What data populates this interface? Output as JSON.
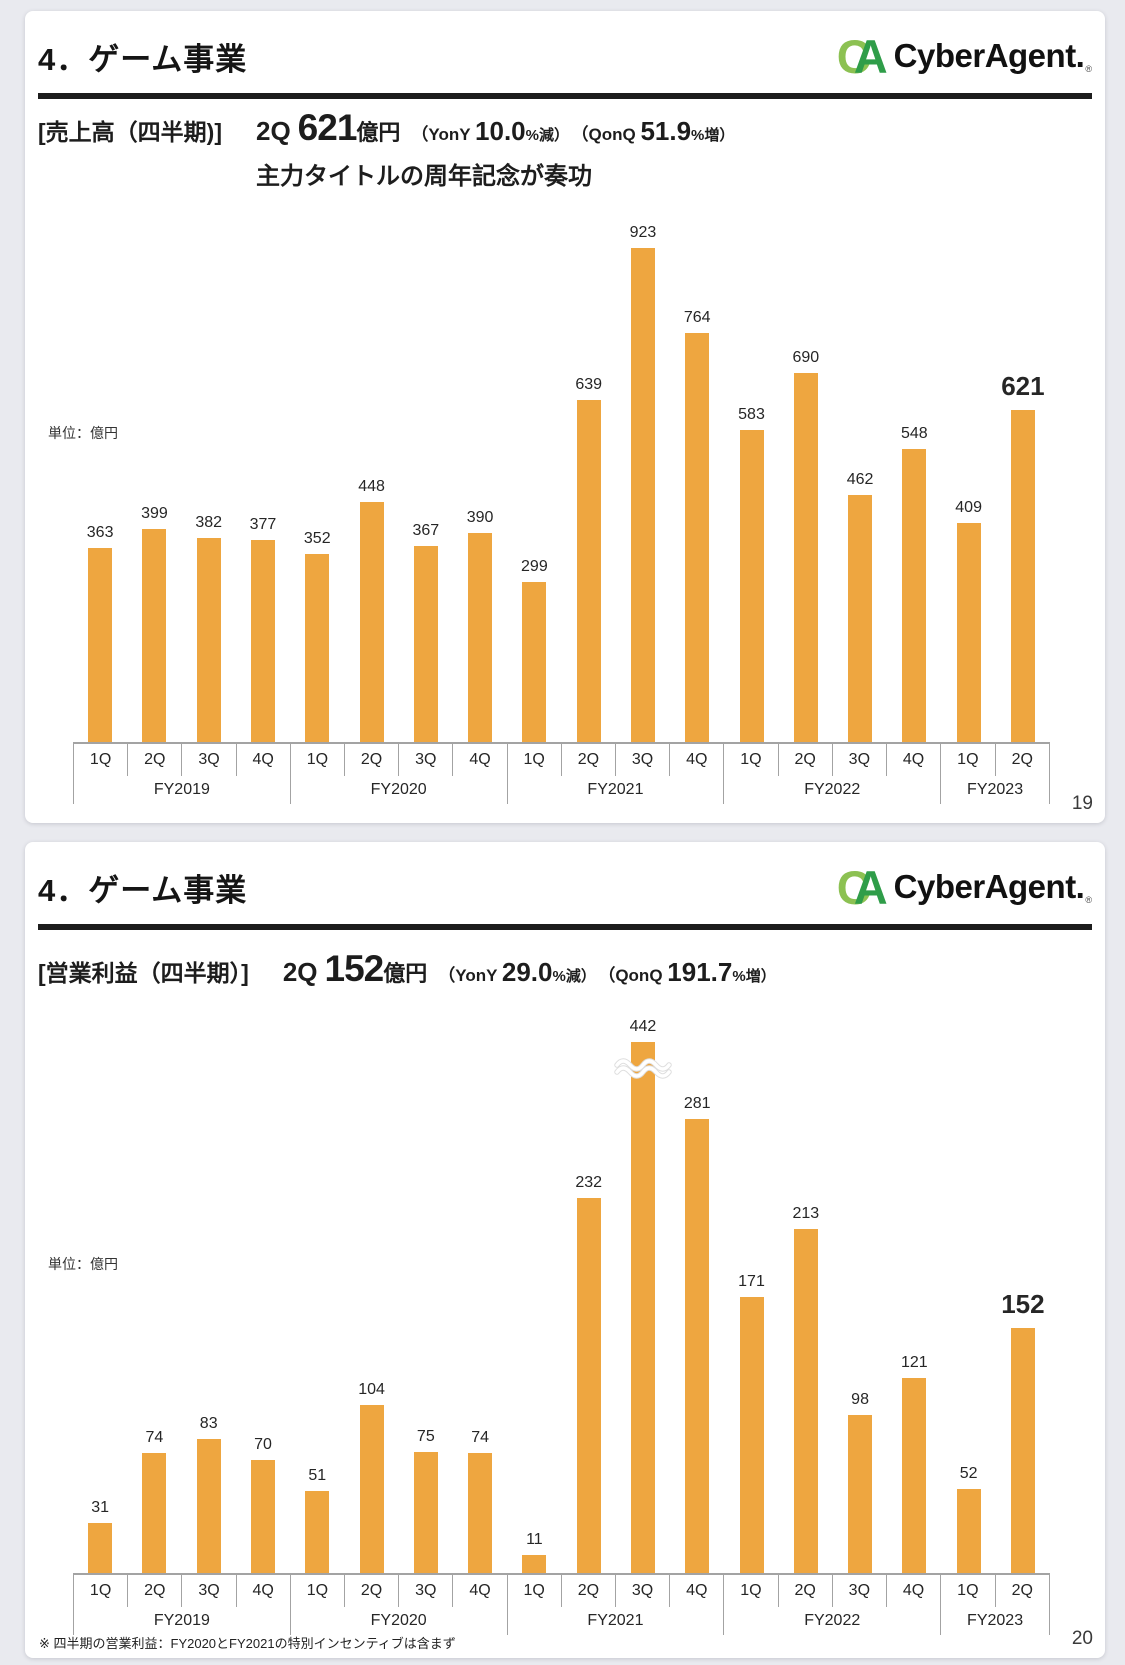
{
  "chart_data": [
    {
      "type": "bar",
      "title": "売上高（四半期）",
      "unit": "億円",
      "categories": [
        "1Q",
        "2Q",
        "3Q",
        "4Q",
        "1Q",
        "2Q",
        "3Q",
        "4Q",
        "1Q",
        "2Q",
        "3Q",
        "4Q",
        "1Q",
        "2Q",
        "3Q",
        "4Q",
        "1Q",
        "2Q"
      ],
      "group_labels": [
        "FY2019",
        "FY2020",
        "FY2021",
        "FY2022",
        "FY2023"
      ],
      "group_sizes": [
        4,
        4,
        4,
        4,
        2
      ],
      "values": [
        363,
        399,
        382,
        377,
        352,
        448,
        367,
        390,
        299,
        639,
        923,
        764,
        583,
        690,
        462,
        548,
        409,
        621
      ],
      "bar_color": "#EEA640",
      "emphasized_last": true,
      "ylim": [
        0,
        950
      ],
      "gridlines": false,
      "legend": "none"
    },
    {
      "type": "bar",
      "title": "営業利益（四半期）",
      "unit": "億円",
      "categories": [
        "1Q",
        "2Q",
        "3Q",
        "4Q",
        "1Q",
        "2Q",
        "3Q",
        "4Q",
        "1Q",
        "2Q",
        "3Q",
        "4Q",
        "1Q",
        "2Q",
        "3Q",
        "4Q",
        "1Q",
        "2Q"
      ],
      "group_labels": [
        "FY2019",
        "FY2020",
        "FY2021",
        "FY2022",
        "FY2023"
      ],
      "group_sizes": [
        4,
        4,
        4,
        4,
        2
      ],
      "values": [
        31,
        74,
        83,
        70,
        51,
        104,
        75,
        74,
        11,
        232,
        442,
        281,
        171,
        213,
        98,
        121,
        52,
        152
      ],
      "bar_color": "#EEA640",
      "emphasized_last": true,
      "truncated_bar_index": 10,
      "ylim": [
        0,
        350
      ],
      "gridlines": false,
      "legend": "none"
    }
  ],
  "slides": [
    {
      "slide_title": "4．ゲーム事業",
      "logo": {
        "mark_c": "C",
        "mark_a": "A",
        "name": "CyberAgent.",
        "reg": "®"
      },
      "metric_label": "[売上高（四半期)]",
      "headline": {
        "quarter": "2Q",
        "value": "621",
        "unit": "億円",
        "yoy_prefix": "（YonY ",
        "yoy_value": "10.0",
        "yoy_suffix": "%減）",
        "qoq_prefix": "（QonQ ",
        "qoq_value": "51.9",
        "qoq_suffix": "%増）"
      },
      "subheadline": "主力タイトルの周年記念が奏功",
      "unit_note": "単位：億円",
      "page_number": "19"
    },
    {
      "slide_title": "4．ゲーム事業",
      "logo": {
        "mark_c": "C",
        "mark_a": "A",
        "name": "CyberAgent.",
        "reg": "®"
      },
      "metric_label": "[営業利益（四半期）]",
      "headline": {
        "quarter": "2Q",
        "value": "152",
        "unit": "億円",
        "yoy_prefix": "（YonY ",
        "yoy_value": "29.0",
        "yoy_suffix": "%減）",
        "qoq_prefix": "（QonQ ",
        "qoq_value": "191.7",
        "qoq_suffix": "%増）"
      },
      "unit_note": "単位：億円",
      "footnote": "※ 四半期の営業利益：FY2020とFY2021の特別インセンティブは含まず",
      "page_number": "20"
    }
  ]
}
